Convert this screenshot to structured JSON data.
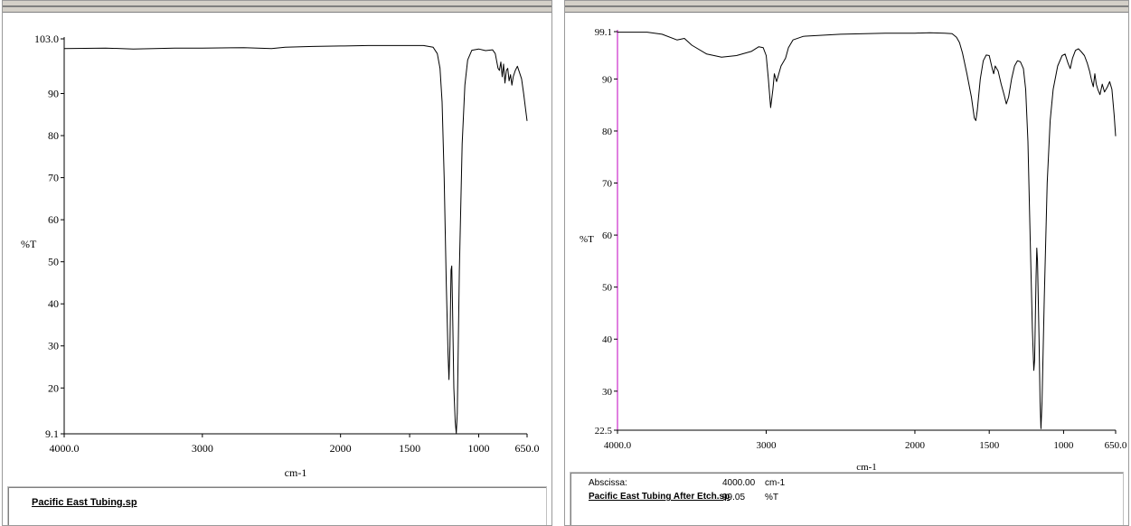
{
  "chart_data": [
    {
      "type": "line",
      "ylabel": "%T",
      "xlabel": "cm-1",
      "xlim": [
        4000.0,
        650.0
      ],
      "ylim": [
        9.1,
        103.0
      ],
      "x_ticks": [
        4000.0,
        3000,
        2000,
        1500,
        1000,
        650.0
      ],
      "x_tick_labels": [
        "4000.0",
        "3000",
        "2000",
        "1500",
        "1000",
        "650.0"
      ],
      "y_ticks": [
        103.0,
        90,
        80,
        70,
        60,
        50,
        40,
        30,
        20,
        9.1
      ],
      "y_tick_labels": [
        "103.0",
        "90",
        "80",
        "70",
        "60",
        "50",
        "40",
        "30",
        "20",
        "9.1"
      ],
      "grid": false,
      "series": [
        {
          "color": "#000000",
          "points": [
            [
              4000,
              100.7
            ],
            [
              3700,
              100.8
            ],
            [
              3500,
              100.6
            ],
            [
              3200,
              100.8
            ],
            [
              3000,
              100.8
            ],
            [
              2700,
              100.9
            ],
            [
              2500,
              100.7
            ],
            [
              2400,
              101.0
            ],
            [
              2200,
              101.2
            ],
            [
              2000,
              101.3
            ],
            [
              1800,
              101.4
            ],
            [
              1600,
              101.4
            ],
            [
              1400,
              101.4
            ],
            [
              1330,
              101.0
            ],
            [
              1300,
              99.5
            ],
            [
              1280,
              96.0
            ],
            [
              1265,
              88.0
            ],
            [
              1250,
              70.0
            ],
            [
              1235,
              45.0
            ],
            [
              1222,
              28.0
            ],
            [
              1215,
              22.0
            ],
            [
              1208,
              30.0
            ],
            [
              1200,
              48.0
            ],
            [
              1195,
              49.0
            ],
            [
              1190,
              40.0
            ],
            [
              1180,
              20.0
            ],
            [
              1170,
              12.0
            ],
            [
              1162,
              9.2
            ],
            [
              1155,
              14.0
            ],
            [
              1140,
              48.0
            ],
            [
              1120,
              78.0
            ],
            [
              1100,
              92.0
            ],
            [
              1080,
              98.0
            ],
            [
              1050,
              100.3
            ],
            [
              1000,
              100.6
            ],
            [
              950,
              100.2
            ],
            [
              900,
              100.4
            ],
            [
              880,
              99.5
            ],
            [
              860,
              96.0
            ],
            [
              850,
              95.5
            ],
            [
              840,
              97.5
            ],
            [
              830,
              94.0
            ],
            [
              820,
              97.0
            ],
            [
              810,
              92.5
            ],
            [
              800,
              95.5
            ],
            [
              790,
              96.0
            ],
            [
              780,
              93.0
            ],
            [
              770,
              94.5
            ],
            [
              760,
              92.0
            ],
            [
              750,
              94.0
            ],
            [
              735,
              95.5
            ],
            [
              720,
              96.5
            ],
            [
              705,
              95.0
            ],
            [
              690,
              93.5
            ],
            [
              675,
              90.0
            ],
            [
              660,
              86.0
            ],
            [
              650,
              83.5
            ]
          ]
        }
      ]
    },
    {
      "type": "line",
      "ylabel": "%T",
      "xlabel": "cm-1",
      "xlim": [
        4000.0,
        650.0
      ],
      "ylim": [
        22.5,
        99.1
      ],
      "x_ticks": [
        4000.0,
        3000,
        2000,
        1500,
        1000,
        650.0
      ],
      "x_tick_labels": [
        "4000.0",
        "3000",
        "2000",
        "1500",
        "1000",
        "650.0"
      ],
      "y_ticks": [
        99.1,
        90,
        80,
        70,
        60,
        50,
        40,
        30,
        22.5
      ],
      "y_tick_labels": [
        "99.1",
        "90",
        "80",
        "70",
        "60",
        "50",
        "40",
        "30",
        "22.5"
      ],
      "grid": false,
      "series": [
        {
          "color": "#000000",
          "points": [
            [
              4000,
              99.0
            ],
            [
              3800,
              99.0
            ],
            [
              3700,
              98.6
            ],
            [
              3600,
              97.5
            ],
            [
              3550,
              97.8
            ],
            [
              3500,
              96.5
            ],
            [
              3400,
              94.8
            ],
            [
              3300,
              94.2
            ],
            [
              3200,
              94.5
            ],
            [
              3100,
              95.3
            ],
            [
              3050,
              96.2
            ],
            [
              3020,
              96.0
            ],
            [
              3000,
              94.5
            ],
            [
              2985,
              90.0
            ],
            [
              2970,
              84.5
            ],
            [
              2955,
              88.0
            ],
            [
              2945,
              91.0
            ],
            [
              2930,
              89.5
            ],
            [
              2900,
              92.5
            ],
            [
              2870,
              94.0
            ],
            [
              2850,
              96.0
            ],
            [
              2820,
              97.5
            ],
            [
              2750,
              98.2
            ],
            [
              2500,
              98.6
            ],
            [
              2200,
              98.8
            ],
            [
              2000,
              98.8
            ],
            [
              1900,
              98.9
            ],
            [
              1800,
              98.8
            ],
            [
              1750,
              98.7
            ],
            [
              1720,
              98.0
            ],
            [
              1700,
              97.0
            ],
            [
              1680,
              95.0
            ],
            [
              1650,
              91.0
            ],
            [
              1620,
              86.5
            ],
            [
              1600,
              82.5
            ],
            [
              1590,
              82.0
            ],
            [
              1580,
              84.0
            ],
            [
              1560,
              90.0
            ],
            [
              1540,
              93.5
            ],
            [
              1520,
              94.6
            ],
            [
              1500,
              94.5
            ],
            [
              1480,
              92.0
            ],
            [
              1470,
              91.0
            ],
            [
              1460,
              92.5
            ],
            [
              1440,
              91.5
            ],
            [
              1420,
              89.0
            ],
            [
              1400,
              87.0
            ],
            [
              1385,
              85.2
            ],
            [
              1370,
              86.5
            ],
            [
              1350,
              90.0
            ],
            [
              1330,
              92.5
            ],
            [
              1310,
              93.5
            ],
            [
              1290,
              93.3
            ],
            [
              1270,
              92.0
            ],
            [
              1255,
              88.0
            ],
            [
              1240,
              78.0
            ],
            [
              1225,
              60.0
            ],
            [
              1210,
              42.0
            ],
            [
              1200,
              34.0
            ],
            [
              1195,
              36.0
            ],
            [
              1185,
              52.0
            ],
            [
              1180,
              57.5
            ],
            [
              1175,
              55.0
            ],
            [
              1165,
              40.0
            ],
            [
              1158,
              28.0
            ],
            [
              1152,
              22.8
            ],
            [
              1145,
              28.0
            ],
            [
              1130,
              48.0
            ],
            [
              1110,
              70.0
            ],
            [
              1090,
              82.0
            ],
            [
              1070,
              88.0
            ],
            [
              1040,
              92.5
            ],
            [
              1010,
              94.5
            ],
            [
              990,
              94.8
            ],
            [
              970,
              93.0
            ],
            [
              955,
              92.0
            ],
            [
              940,
              94.0
            ],
            [
              920,
              95.5
            ],
            [
              900,
              95.8
            ],
            [
              880,
              95.2
            ],
            [
              860,
              94.5
            ],
            [
              840,
              93.0
            ],
            [
              825,
              91.5
            ],
            [
              810,
              89.5
            ],
            [
              800,
              88.5
            ],
            [
              790,
              91.0
            ],
            [
              780,
              89.0
            ],
            [
              770,
              88.0
            ],
            [
              755,
              87.0
            ],
            [
              740,
              89.0
            ],
            [
              725,
              87.5
            ],
            [
              705,
              88.5
            ],
            [
              690,
              89.5
            ],
            [
              675,
              88.0
            ],
            [
              660,
              83.0
            ],
            [
              650,
              79.0
            ]
          ]
        }
      ]
    }
  ],
  "footers": {
    "left": {
      "filename": "Pacific East Tubing.sp"
    },
    "right": {
      "abscissa_label": "Abscissa:",
      "abscissa_value": "4000.00",
      "abscissa_unit": "cm-1",
      "filename": "Pacific East Tubing After Etch.sp",
      "ordinate_value": "99.05",
      "ordinate_unit": "%T"
    }
  },
  "colors": {
    "right_y_axis": "#c000c0",
    "axis": "#000000",
    "trace": "#000000"
  }
}
